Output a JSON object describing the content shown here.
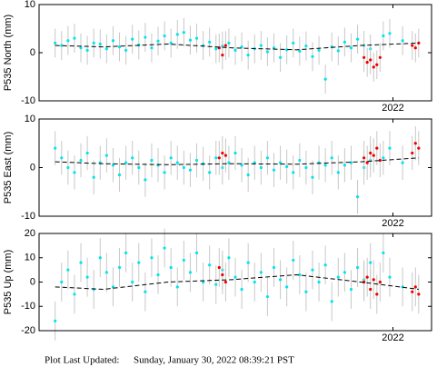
{
  "chart_data": [
    {
      "type": "scatter",
      "ylabel": "P535 North (mm)",
      "xlim": [
        2020.9,
        2022.12
      ],
      "xticks": [
        2022
      ],
      "ylim": [
        -10,
        10
      ],
      "yticks": [
        -10,
        0,
        10
      ],
      "series": [
        {
          "color": "#00e5ee",
          "error": 3,
          "x": [
            2020.95,
            2020.97,
            2020.99,
            2021.01,
            2021.03,
            2021.05,
            2021.07,
            2021.09,
            2021.11,
            2021.13,
            2021.15,
            2021.17,
            2021.19,
            2021.21,
            2021.23,
            2021.25,
            2021.27,
            2021.29,
            2021.31,
            2021.33,
            2021.35,
            2021.37,
            2021.39,
            2021.41,
            2021.43,
            2021.45,
            2021.47,
            2021.49,
            2021.51,
            2021.53,
            2021.55,
            2021.57,
            2021.59,
            2021.61,
            2021.63,
            2021.65,
            2021.67,
            2021.69,
            2021.71,
            2021.73,
            2021.75,
            2021.77,
            2021.79,
            2021.81,
            2021.83,
            2021.85,
            2021.87,
            2021.89,
            2021.91,
            2021.93,
            2021.97,
            2021.99,
            2022.03
          ],
          "values": [
            2,
            1.5,
            2.5,
            3,
            1,
            0.5,
            2,
            1.8,
            0.8,
            2.5,
            1.2,
            0.5,
            2.8,
            1.6,
            3.2,
            1,
            2.4,
            3.5,
            2,
            3.8,
            4.2,
            2.6,
            3,
            1.5,
            2.2,
            0.8,
            1.4,
            2,
            0.5,
            1.2,
            -0.5,
            0.8,
            1.5,
            0.2,
            1,
            -1,
            0.6,
            2,
            0.3,
            1.4,
            -0.8,
            0.5,
            -5.5,
            1.2,
            0.4,
            2.2,
            1,
            2.8,
            1.5,
            0.8,
            3.5,
            4,
            2.5
          ]
        },
        {
          "color": "#ee0000",
          "error": 3,
          "x": [
            2021.46,
            2021.47,
            2021.48,
            2021.91,
            2021.92,
            2021.93,
            2021.94,
            2021.95,
            2021.96,
            2022.06,
            2022.07,
            2022.08
          ],
          "values": [
            1,
            -0.5,
            1.5,
            -1,
            -2,
            -1.5,
            -3,
            -2.5,
            -1,
            1.5,
            1,
            2
          ]
        },
        {
          "color": "#000000",
          "line": "dashed",
          "x": [
            2020.95,
            2021.1,
            2021.3,
            2021.5,
            2021.7,
            2021.9,
            2022.08
          ],
          "values": [
            1.5,
            1.2,
            1.8,
            1,
            0.6,
            1.5,
            2
          ]
        }
      ]
    },
    {
      "type": "scatter",
      "ylabel": "P535 East (mm)",
      "xlim": [
        2020.9,
        2022.12
      ],
      "xticks": [
        2022
      ],
      "ylim": [
        -10,
        10
      ],
      "yticks": [
        -10,
        0,
        10
      ],
      "series": [
        {
          "color": "#00e5ee",
          "error": 3.5,
          "x": [
            2020.95,
            2020.97,
            2020.99,
            2021.01,
            2021.03,
            2021.05,
            2021.07,
            2021.09,
            2021.11,
            2021.13,
            2021.15,
            2021.17,
            2021.19,
            2021.21,
            2021.23,
            2021.25,
            2021.27,
            2021.29,
            2021.31,
            2021.33,
            2021.35,
            2021.37,
            2021.39,
            2021.41,
            2021.43,
            2021.45,
            2021.47,
            2021.49,
            2021.51,
            2021.53,
            2021.55,
            2021.57,
            2021.59,
            2021.61,
            2021.63,
            2021.65,
            2021.67,
            2021.69,
            2021.71,
            2021.73,
            2021.75,
            2021.77,
            2021.79,
            2021.81,
            2021.83,
            2021.85,
            2021.87,
            2021.89,
            2021.91,
            2021.93,
            2021.97,
            2021.99,
            2022.03
          ],
          "values": [
            4,
            2,
            0,
            -1,
            1.5,
            3,
            -2,
            1,
            2.5,
            0.5,
            -1.5,
            1,
            2,
            0,
            -2.5,
            1.5,
            0.5,
            -1,
            2,
            1,
            0,
            -0.5,
            1.5,
            0.8,
            -1,
            2,
            0,
            1,
            3,
            0.5,
            -1.5,
            1,
            0,
            2,
            -0.5,
            1,
            0.2,
            -1,
            1.5,
            0,
            -2,
            1,
            0.5,
            2,
            -1,
            0.5,
            1,
            -6,
            0,
            1.5,
            2,
            4,
            1
          ]
        },
        {
          "color": "#ee0000",
          "error": 3.5,
          "x": [
            2021.46,
            2021.47,
            2021.48,
            2021.91,
            2021.92,
            2021.93,
            2021.94,
            2021.95,
            2021.96,
            2022.06,
            2022.07,
            2022.08
          ],
          "values": [
            2,
            3,
            2.5,
            2,
            1,
            3,
            2.5,
            4,
            1.5,
            3,
            5,
            4
          ]
        },
        {
          "color": "#000000",
          "line": "dashed",
          "x": [
            2020.95,
            2021.1,
            2021.3,
            2021.5,
            2021.7,
            2021.9,
            2022.08
          ],
          "values": [
            1.2,
            0.8,
            0.6,
            0.8,
            0.7,
            1.2,
            2
          ]
        }
      ]
    },
    {
      "type": "scatter",
      "ylabel": "P535 Up (mm)",
      "xlim": [
        2020.9,
        2022.12
      ],
      "xticks": [
        2022
      ],
      "ylim": [
        -20,
        20
      ],
      "yticks": [
        -20,
        -10,
        0,
        10,
        20
      ],
      "series": [
        {
          "color": "#00e5ee",
          "error": 8,
          "x": [
            2020.95,
            2020.97,
            2020.99,
            2021.01,
            2021.03,
            2021.05,
            2021.07,
            2021.09,
            2021.11,
            2021.13,
            2021.15,
            2021.17,
            2021.19,
            2021.21,
            2021.23,
            2021.25,
            2021.27,
            2021.29,
            2021.31,
            2021.33,
            2021.35,
            2021.37,
            2021.39,
            2021.41,
            2021.43,
            2021.45,
            2021.47,
            2021.49,
            2021.51,
            2021.53,
            2021.55,
            2021.57,
            2021.59,
            2021.61,
            2021.63,
            2021.65,
            2021.67,
            2021.69,
            2021.71,
            2021.73,
            2021.75,
            2021.77,
            2021.79,
            2021.81,
            2021.83,
            2021.85,
            2021.87,
            2021.89,
            2021.91,
            2021.93,
            2021.97,
            2021.99,
            2022.03
          ],
          "values": [
            -16,
            0,
            5,
            -5,
            8,
            2,
            -3,
            10,
            4,
            -2,
            6,
            12,
            0,
            8,
            -4,
            10,
            3,
            14,
            6,
            -2,
            9,
            4,
            12,
            0,
            7,
            -1,
            5,
            10,
            2,
            -3,
            8,
            0,
            4,
            -6,
            6,
            1,
            -2,
            9,
            3,
            -4,
            5,
            0,
            7,
            -8,
            2,
            4,
            -3,
            6,
            1,
            8,
            12,
            2,
            -2
          ]
        },
        {
          "color": "#ee0000",
          "error": 8,
          "x": [
            2021.46,
            2021.47,
            2021.48,
            2021.91,
            2021.92,
            2021.93,
            2021.94,
            2021.95,
            2021.96,
            2022.06,
            2022.07,
            2022.08
          ],
          "values": [
            6,
            3,
            0,
            0,
            2,
            -3,
            1,
            -5,
            0,
            -4,
            -2,
            -5
          ]
        },
        {
          "color": "#000000",
          "line": "dashed",
          "x": [
            2020.95,
            2021.1,
            2021.3,
            2021.5,
            2021.7,
            2021.9,
            2022.08
          ],
          "values": [
            -2,
            -3,
            0,
            1,
            3,
            0,
            -3
          ]
        }
      ]
    }
  ],
  "footer": {
    "label": "Plot Last Updated:",
    "text": "Sunday, January 30, 2022 08:39:21 PST"
  }
}
